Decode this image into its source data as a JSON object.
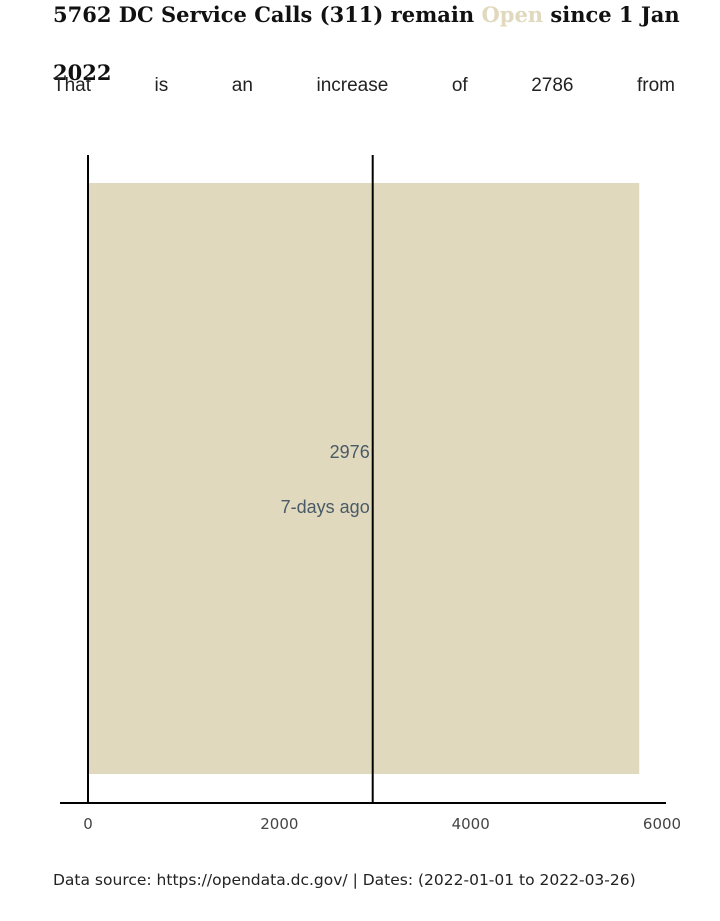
{
  "header": {
    "title_before": "5762 DC Service Calls (311) remain",
    "title_highlight": "Open",
    "title_after": "since 1 Jan 2022",
    "subtitle": "That is an increase of 2786 from"
  },
  "colors": {
    "bar": "#e0d9be",
    "highlight": "#e0d9be",
    "axis": "#000000",
    "annotation": "#4a5a66"
  },
  "chart_data": {
    "type": "bar",
    "orientation": "horizontal",
    "categories": [
      ""
    ],
    "values": [
      5762
    ],
    "xlim": [
      0,
      6000
    ],
    "xticks": [
      0,
      2000,
      4000,
      6000
    ],
    "grid": false,
    "reference": {
      "value": 2976,
      "label": "2976",
      "sublabel": "7-days ago"
    }
  },
  "footer": {
    "source": "Data source: https://opendata.dc.gov/ | Dates: (2022-01-01 to 2022-03-26)"
  }
}
